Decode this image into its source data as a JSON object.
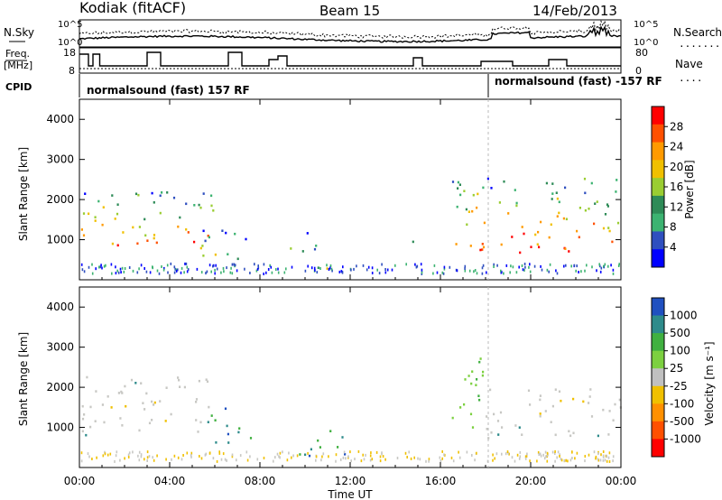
{
  "header": {
    "station": "Kodiak (fitACF)",
    "beam": "Beam 15",
    "date": "14/Feb/2013"
  },
  "left_labels": {
    "nsky": "N.Sky",
    "freq_line1": "Freq.",
    "freq_line2": "[MHz]",
    "cpid": "CPID"
  },
  "right_labels": {
    "nsearch": "N.Search",
    "nave": "Nave"
  },
  "top_ticks": {
    "noise_hi": "10^5",
    "noise_lo": "10^0",
    "freq_hi": "18",
    "freq_lo": "8",
    "nave_hi": "80",
    "nave_lo": "0"
  },
  "cpid_labels": {
    "first": "normalsound (fast) 157 RF",
    "second": "normalsound (fast) -157 RF"
  },
  "colorbar_power": {
    "title": "Power [dB]",
    "ticks": [
      "28",
      "24",
      "20",
      "16",
      "12",
      "8",
      "4"
    ],
    "colors": [
      "#ff0000",
      "#ff5000",
      "#ff9a00",
      "#f0c000",
      "#9acd32",
      "#2e8b57",
      "#3cb371",
      "#2f4fbf",
      "#0000ff"
    ]
  },
  "colorbar_velocity": {
    "title": "Velocity [m s⁻¹]",
    "ticks": [
      "1000",
      "500",
      "100",
      "25",
      "-25",
      "-100",
      "-500",
      "-1000"
    ],
    "colors": [
      "#2050c0",
      "#2e8b8b",
      "#40b040",
      "#7cd040",
      "#c0c0c0",
      "#f0c000",
      "#ff9000",
      "#ff5000",
      "#ff0000"
    ]
  },
  "chart_data": [
    {
      "type": "heatmap",
      "name": "power",
      "ylabel": "Slant Range [km]",
      "ylim": [
        0,
        4500
      ],
      "yticks": [
        "1000",
        "2000",
        "3000",
        "4000"
      ],
      "xlim": [
        "00:00",
        "24:00"
      ],
      "xticks": [
        "00:00",
        "04:00",
        "08:00",
        "12:00",
        "16:00",
        "20:00",
        "00:00"
      ],
      "colorbar": "Power [dB]",
      "regions": [
        {
          "t0": 0.0,
          "t1": 6.0,
          "r0": 800,
          "r1": 2300,
          "value": "mixed 4-28"
        },
        {
          "t0": 5.3,
          "t1": 7.6,
          "r0": 550,
          "r1": 1500,
          "value": "mixed 4-16"
        },
        {
          "t0": 9.3,
          "t1": 10.5,
          "r0": 600,
          "r1": 1300,
          "value": "mixed 4-16"
        },
        {
          "t0": 10.0,
          "t1": 12.0,
          "r0": 300,
          "r1": 500,
          "value": "mixed 4-12"
        },
        {
          "t0": 14.3,
          "t1": 14.8,
          "r0": 900,
          "r1": 1200,
          "value": "mixed 4-8"
        },
        {
          "t0": 16.5,
          "t1": 24.0,
          "r0": 700,
          "r1": 2600,
          "value": "mixed 4-28"
        }
      ]
    },
    {
      "type": "heatmap",
      "name": "velocity",
      "ylabel": "Slant Range [km]",
      "xlabel": "Time UT",
      "ylim": [
        0,
        4500
      ],
      "yticks": [
        "1000",
        "2000",
        "3000",
        "4000"
      ],
      "xlim": [
        "00:00",
        "24:00"
      ],
      "xticks": [
        "00:00",
        "04:00",
        "08:00",
        "12:00",
        "16:00",
        "20:00",
        "00:00"
      ],
      "colorbar": "Velocity [m s⁻¹]",
      "regions": [
        {
          "t0": 0.0,
          "t1": 6.0,
          "r0": 800,
          "r1": 2300,
          "value": "mostly -25..25"
        },
        {
          "t0": 5.5,
          "t1": 7.6,
          "r0": 550,
          "r1": 1500,
          "value": "100..500"
        },
        {
          "t0": 9.5,
          "t1": 12.0,
          "r0": 300,
          "r1": 1000,
          "value": "100..500"
        },
        {
          "t0": 14.4,
          "t1": 14.7,
          "r0": 900,
          "r1": 1100,
          "value": "-100"
        },
        {
          "t0": 16.5,
          "t1": 18.0,
          "r0": 1000,
          "r1": 3000,
          "value": "25..100"
        },
        {
          "t0": 18.0,
          "t1": 24.0,
          "r0": 700,
          "r1": 2000,
          "value": "mostly -25..25"
        }
      ]
    }
  ]
}
